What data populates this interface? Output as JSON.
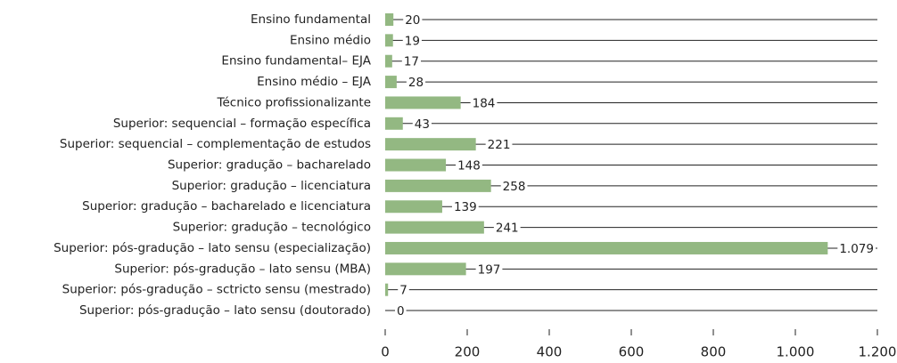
{
  "chart_data": {
    "type": "barh",
    "categories": [
      "Ensino fundamental",
      "Ensino médio",
      "Ensino fundamental– EJA",
      "Ensino médio – EJA",
      "Técnico profissionalizante",
      "Superior: sequencial – formação específica",
      "Superior: sequencial – complementação de estudos",
      "Superior: gradução – bacharelado",
      "Superior: gradução – licenciatura",
      "Superior: gradução – bacharelado e licenciatura",
      "Superior: gradução – tecnológico",
      "Superior: pós-gradução – lato sensu (especialização)",
      "Superior: pós-gradução – lato sensu (MBA)",
      "Superior: pós-gradução – sctricto sensu (mestrado)",
      "Superior: pós-gradução – lato sensu (doutorado)"
    ],
    "values": [
      20,
      19,
      17,
      28,
      184,
      43,
      221,
      148,
      258,
      139,
      241,
      1079,
      197,
      7,
      0
    ],
    "value_labels": [
      "20",
      "19",
      "17",
      "28",
      "184",
      "43",
      "221",
      "148",
      "258",
      "139",
      "241",
      "1.079",
      "197",
      "7",
      "0"
    ],
    "color": "#93b882",
    "xlim": [
      0,
      1200
    ],
    "xticks": [
      0,
      200,
      400,
      600,
      800,
      {
        "value": 1000,
        "label": "1.000"
      },
      {
        "value": 1200,
        "label": "1.200"
      }
    ]
  }
}
